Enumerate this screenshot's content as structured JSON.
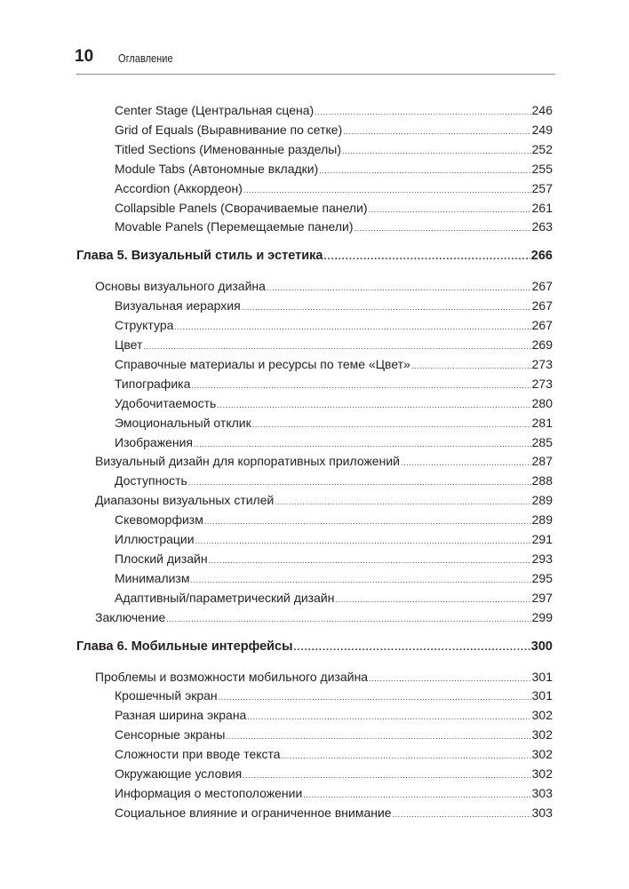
{
  "header": {
    "page_number": "10",
    "title": "Оглавление"
  },
  "toc": [
    {
      "level": 2,
      "title": "Center Stage (Центральная сцена)",
      "page": "246"
    },
    {
      "level": 2,
      "title": "Grid of Equals (Выравнивание по сетке)",
      "page": "249"
    },
    {
      "level": 2,
      "title": "Titled Sections (Именованные разделы)",
      "page": "252"
    },
    {
      "level": 2,
      "title": "Module Tabs (Автономные вкладки)",
      "page": "255"
    },
    {
      "level": 2,
      "title": "Accordion (Аккордеон)",
      "page": "257"
    },
    {
      "level": 2,
      "title": "Collapsible Panels (Сворачиваемые панели)",
      "page": "261"
    },
    {
      "level": 2,
      "title": "Movable Panels (Перемещаемые панели)",
      "page": "263"
    },
    {
      "level": 0,
      "title": "Глава 5. Визуальный стиль и эстетика",
      "page": "266"
    },
    {
      "level": 1,
      "title": "Основы визуального дизайна",
      "page": "267"
    },
    {
      "level": 2,
      "title": "Визуальная иерархия",
      "page": "267"
    },
    {
      "level": 2,
      "title": "Структура",
      "page": "267"
    },
    {
      "level": 2,
      "title": "Цвет",
      "page": "269"
    },
    {
      "level": 2,
      "title": "Справочные материалы и ресурсы по теме «Цвет»",
      "page": "273"
    },
    {
      "level": 2,
      "title": "Типографика",
      "page": "273"
    },
    {
      "level": 2,
      "title": "Удобочитаемость",
      "page": "280"
    },
    {
      "level": 2,
      "title": "Эмоциональный отклик",
      "page": "281"
    },
    {
      "level": 2,
      "title": "Изображения",
      "page": "285"
    },
    {
      "level": 1,
      "title": "Визуальный дизайн для корпоративных приложений",
      "page": "287"
    },
    {
      "level": 2,
      "title": "Доступность",
      "page": "288"
    },
    {
      "level": 1,
      "title": "Диапазоны визуальных стилей",
      "page": "289"
    },
    {
      "level": 2,
      "title": "Скевоморфизм",
      "page": "289"
    },
    {
      "level": 2,
      "title": "Иллюстрации",
      "page": "291"
    },
    {
      "level": 2,
      "title": "Плоский дизайн",
      "page": "293"
    },
    {
      "level": 2,
      "title": "Минимализм",
      "page": "295"
    },
    {
      "level": 2,
      "title": "Адаптивный/параметрический дизайн",
      "page": "297"
    },
    {
      "level": 1,
      "title": "Заключение",
      "page": "299"
    },
    {
      "level": 0,
      "title": "Глава 6. Мобильные интерфейсы",
      "page": "300"
    },
    {
      "level": 1,
      "title": "Проблемы и возможности мобильного дизайна",
      "page": "301"
    },
    {
      "level": 2,
      "title": "Крошечный экран",
      "page": "301"
    },
    {
      "level": 2,
      "title": "Разная ширина экрана",
      "page": "302"
    },
    {
      "level": 2,
      "title": "Сенсорные экраны",
      "page": "302"
    },
    {
      "level": 2,
      "title": "Сложности при вводе текста",
      "page": "302"
    },
    {
      "level": 2,
      "title": "Окружающие условия",
      "page": "302"
    },
    {
      "level": 2,
      "title": "Информация о местоположении",
      "page": "303"
    },
    {
      "level": 2,
      "title": "Социальное влияние и ограниченное внимание",
      "page": "303"
    }
  ]
}
